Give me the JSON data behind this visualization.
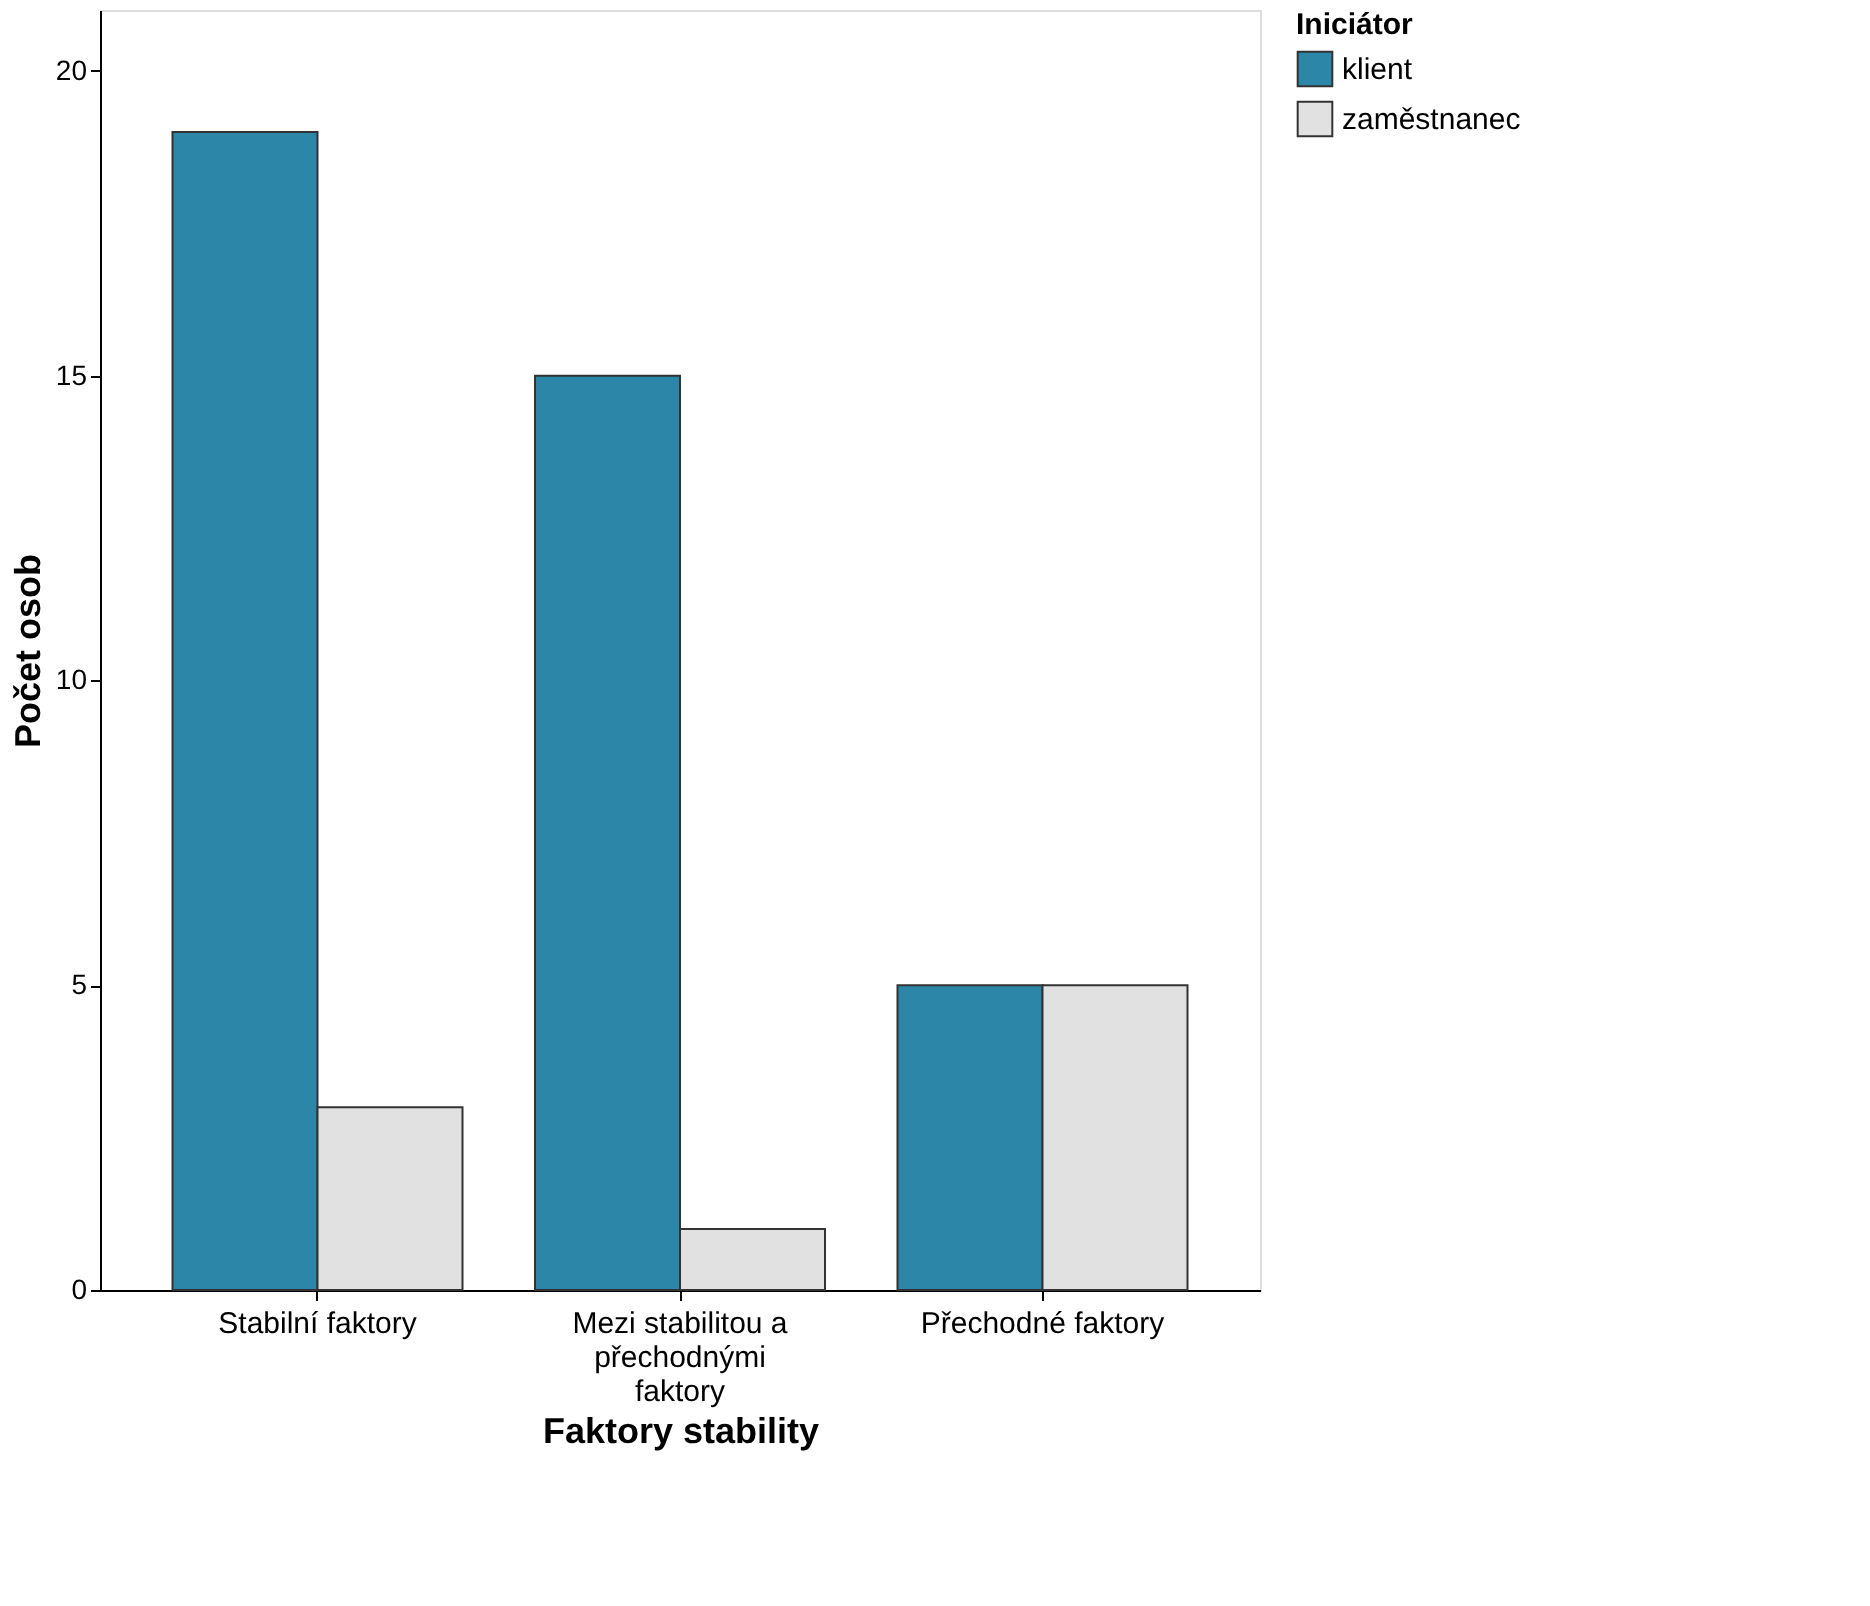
{
  "chart_data": {
    "type": "bar",
    "xlabel": "Faktory stability",
    "ylabel": "Počet osob",
    "legend_title": "Iniciátor",
    "categories": [
      "Stabilní faktory",
      "Mezi stabilitou a přechodnými faktory",
      "Přechodné faktory"
    ],
    "series": [
      {
        "name": "klient",
        "color": "#2b86a8",
        "values": [
          19,
          15,
          5
        ]
      },
      {
        "name": "zaměstnanec",
        "color": "#e1e1e1",
        "values": [
          3,
          1,
          5
        ]
      }
    ],
    "ylim": [
      0,
      21
    ],
    "yticks": [
      0,
      5,
      10,
      15,
      20
    ],
    "grid": false,
    "legend": "top right"
  }
}
